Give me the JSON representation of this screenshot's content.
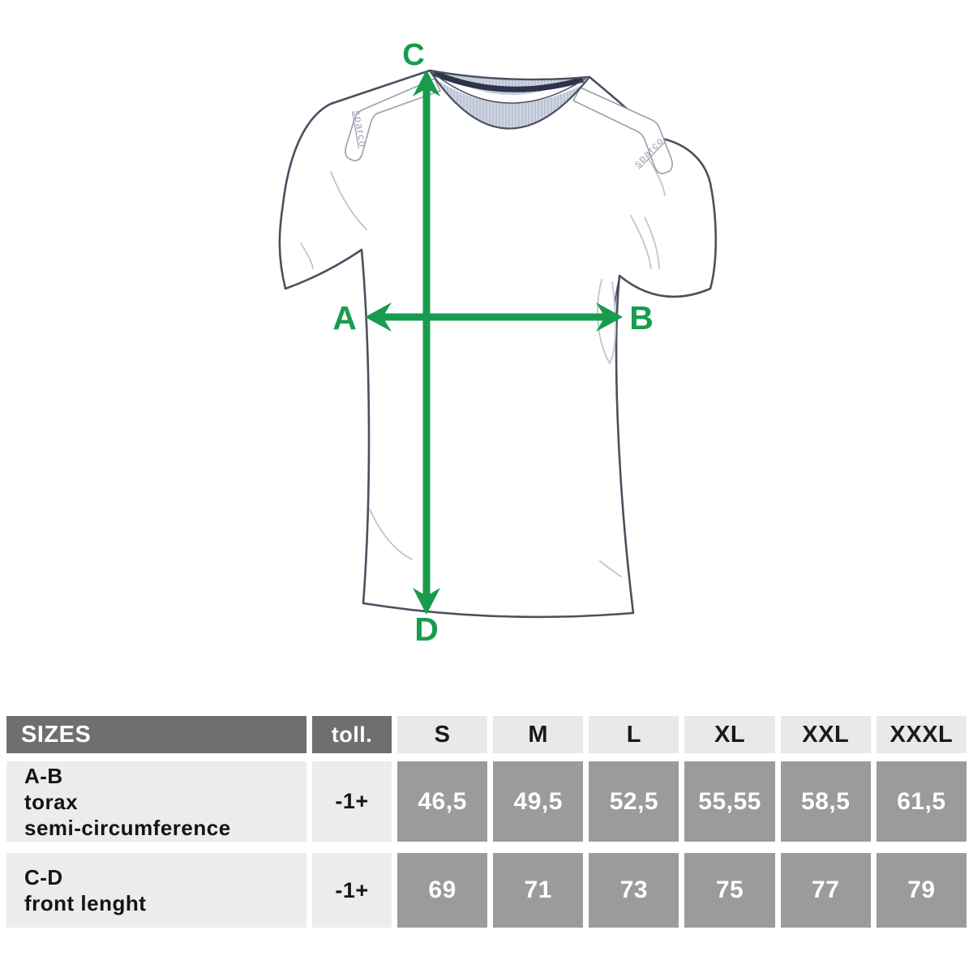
{
  "figure": {
    "brand_left": "sparco",
    "brand_right": "sparco",
    "point_labels": {
      "top": "C",
      "bottom": "D",
      "left": "A",
      "right": "B"
    },
    "colors": {
      "arrow_green": "#179c4e",
      "outline": "#4b5060",
      "collar_fill": "#cfd5e2",
      "collar_rib": "#aab3c7",
      "collar_stripe": "#2d3348",
      "crease": "#c4c4ca",
      "brand_text": "#9aa0ab"
    }
  },
  "table": {
    "sizes_label": "SIZES",
    "tolerance_label": "toll.",
    "size_columns": [
      "S",
      "M",
      "L",
      "XL",
      "XXL",
      "XXXL"
    ],
    "rows": [
      {
        "label_lines": [
          "A-B",
          "torax",
          "semi-circumference"
        ],
        "tolerance": "-1+",
        "values": [
          "46,5",
          "49,5",
          "52,5",
          "55,55",
          "58,5",
          "61,5"
        ]
      },
      {
        "label_lines": [
          "C-D",
          "front lenght"
        ],
        "tolerance": "-1+",
        "values": [
          "69",
          "71",
          "73",
          "75",
          "77",
          "79"
        ]
      }
    ],
    "colors": {
      "header_dark_bg": "#6f6f6f",
      "header_light_bg": "#e9e9e9",
      "label_bg": "#ececec",
      "value_bg": "#9b9b9b",
      "value_text": "#ffffff"
    }
  }
}
